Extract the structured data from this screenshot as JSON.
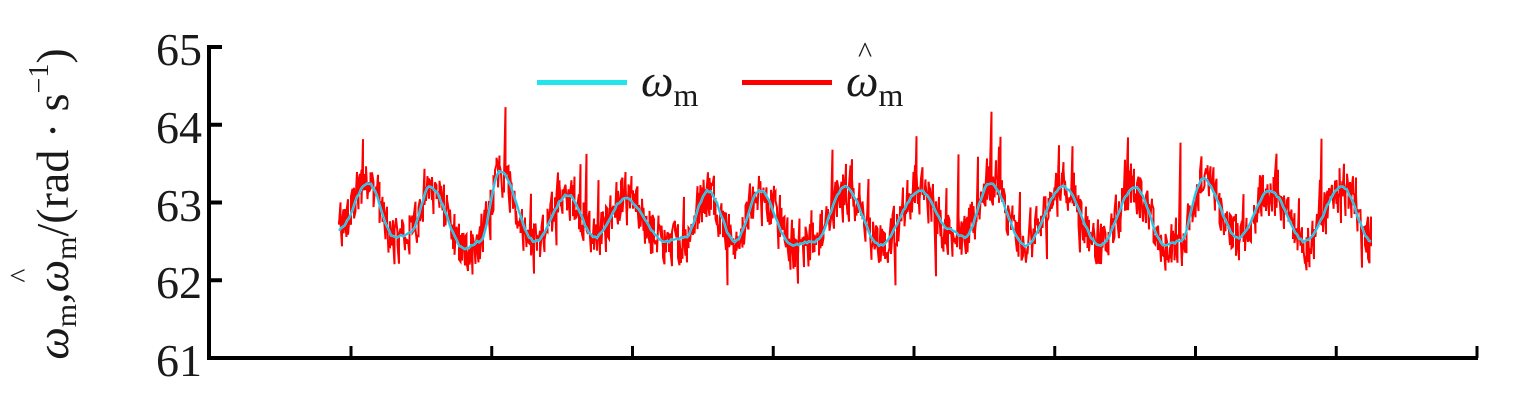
{
  "chart_data": {
    "type": "line",
    "title": "",
    "xlabel": "",
    "ylabel": "ω_m, ω̂_m/(rad · s⁻¹)",
    "ylim": [
      61,
      65
    ],
    "yticks": [
      61,
      62,
      63,
      64,
      65
    ],
    "xtick_count": 9,
    "xtick_labels": [],
    "grid": false,
    "legend_position": "top-center",
    "series": [
      {
        "name": "ω_m",
        "color": "#22e5ec",
        "description": "smooth periodic speed signal",
        "points": [
          [
            339,
            62.65
          ],
          [
            368,
            63.25
          ],
          [
            395,
            62.55
          ],
          [
            410,
            62.6
          ],
          [
            430,
            63.2
          ],
          [
            465,
            62.4
          ],
          [
            480,
            62.5
          ],
          [
            500,
            63.4
          ],
          [
            535,
            62.5
          ],
          [
            568,
            63.1
          ],
          [
            595,
            62.55
          ],
          [
            625,
            63.05
          ],
          [
            665,
            62.5
          ],
          [
            685,
            62.55
          ],
          [
            708,
            63.15
          ],
          [
            735,
            62.5
          ],
          [
            760,
            63.15
          ],
          [
            792,
            62.45
          ],
          [
            815,
            62.5
          ],
          [
            845,
            63.2
          ],
          [
            880,
            62.45
          ],
          [
            920,
            63.15
          ],
          [
            950,
            62.65
          ],
          [
            965,
            62.55
          ],
          [
            990,
            63.25
          ],
          [
            1025,
            62.45
          ],
          [
            1063,
            63.2
          ],
          [
            1100,
            62.45
          ],
          [
            1135,
            63.2
          ],
          [
            1165,
            62.45
          ],
          [
            1180,
            62.5
          ],
          [
            1203,
            63.3
          ],
          [
            1238,
            62.55
          ],
          [
            1270,
            63.15
          ],
          [
            1305,
            62.5
          ],
          [
            1342,
            63.2
          ],
          [
            1372,
            62.5
          ]
        ]
      },
      {
        "name": "ω̂_m",
        "color": "#ff0000",
        "description": "noisy estimated speed signal tracking ω_m with approx ±0.8 rad/s spikes",
        "range": [
          61.65,
          64.4
        ]
      }
    ]
  },
  "axis": {
    "ytick_labels": [
      "65",
      "64",
      "63",
      "62",
      "61"
    ],
    "ylabel_parts": {
      "sym1": "ω",
      "sub1": "m",
      "comma": ",",
      "sym2": "ω",
      "sub2": "m",
      "unit": "/(rad · s",
      "sup": "−1",
      "close": ")"
    }
  },
  "legend": {
    "items": [
      {
        "symbol": "ω",
        "subscript": "m",
        "hat": false,
        "color": "#22e5ec"
      },
      {
        "symbol": "ω",
        "subscript": "m",
        "hat": true,
        "color": "#ff0000"
      }
    ]
  }
}
